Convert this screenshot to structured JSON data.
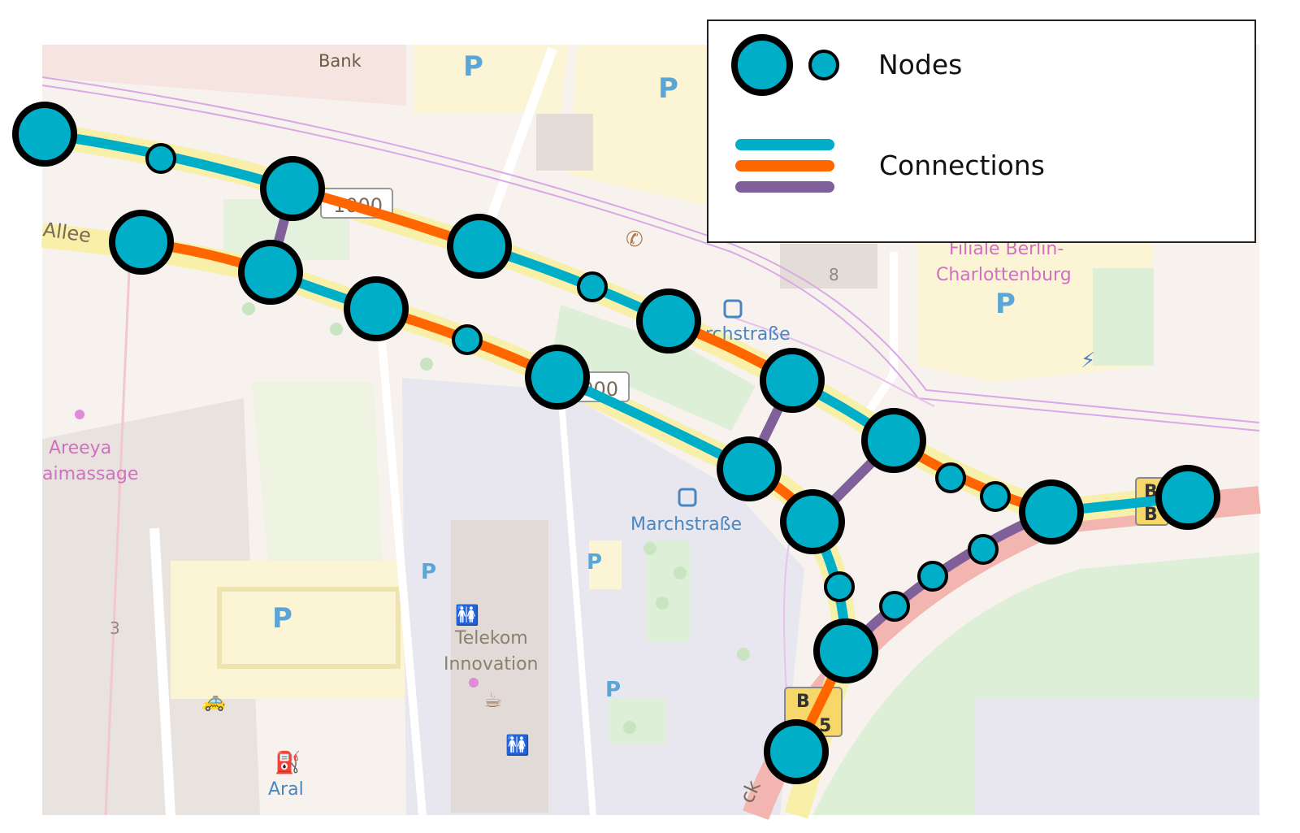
{
  "legend": {
    "nodes_label": "Nodes",
    "connections_label": "Connections"
  },
  "colors": {
    "node_fill": "#00AEC7",
    "node_stroke": "#000000",
    "connection_teal": "#00AEC7",
    "connection_orange": "#FF6600",
    "connection_purple": "#80609A",
    "road_yellow": "#F8EFA8",
    "road_pink": "#F2B5B0",
    "land_base": "#F7F2EE",
    "green_area": "#DDEFD6",
    "parking_yellow": "#FBF4D5",
    "building_grey": "#E6E2EE",
    "rail_lilac": "#D9A8E6"
  },
  "map_labels": {
    "bank": "Bank",
    "allee": "Allee",
    "shield_1000_top": "1000",
    "shield_1000_mid": "1000",
    "marchstrasse_top": "rchstraße",
    "marchstrasse_bottom": "Marchstraße",
    "filiale_line1": "Filiale Berlin-",
    "filiale_line2": "Charlottenburg",
    "areeya_line1": "Areeya",
    "areeya_line2": "aimassage",
    "telekom_line1": "Telekom",
    "telekom_line2": "Innovation",
    "aral": "Aral",
    "num_8": "8",
    "num_3": "3",
    "b5_top_left": "B",
    "b5_top_right": "B",
    "b5_bottom": "B",
    "b5_bottom_num": "5",
    "ck": "ck",
    "p": "P"
  },
  "icons": {
    "bus_stop": "bus-icon",
    "telephone": "telephone-icon",
    "charging": "charging-station-icon",
    "fuel": "fuel-pump-icon",
    "toilets": "toilets-icon",
    "cafe": "cafe-icon",
    "taxi": "taxi-icon",
    "bicycle_parking": "bicycle-parking-icon"
  }
}
